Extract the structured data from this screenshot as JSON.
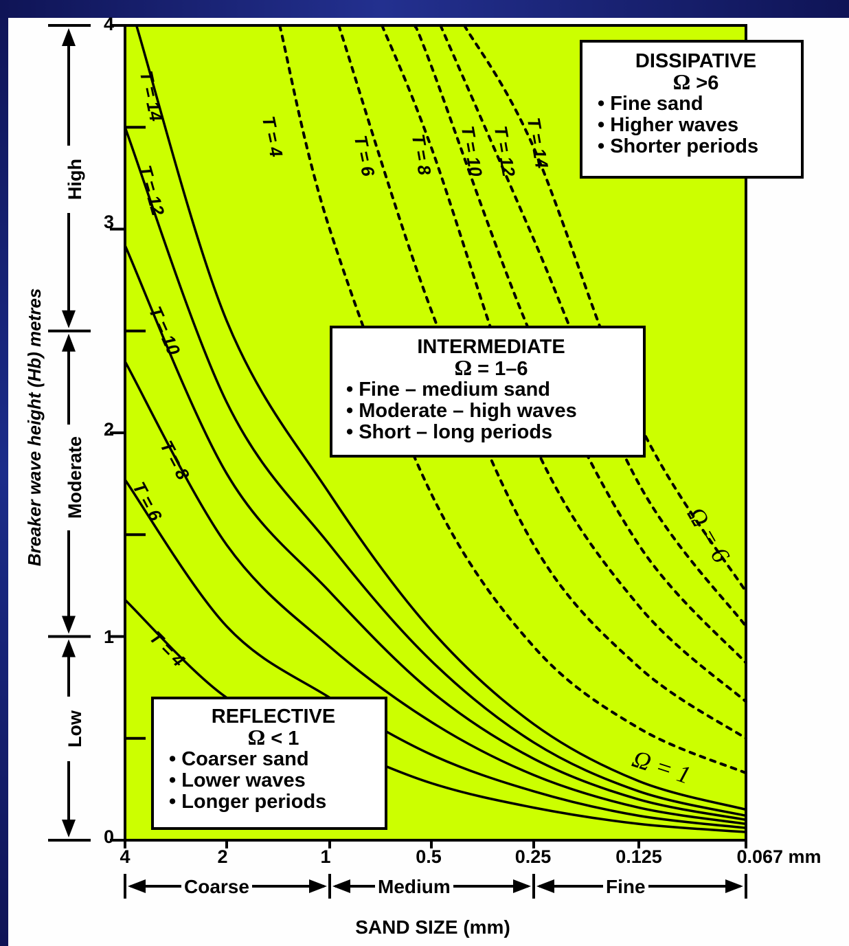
{
  "chart_data": {
    "type": "line",
    "ylabel": "Breaker wave height (Hb) metres",
    "xlabel": "SAND SIZE (mm)",
    "x_tick_labels": [
      "4",
      "2",
      "1",
      "0.5",
      "0.25",
      "0.125",
      "0.067 mm"
    ],
    "y_tick_labels": [
      "0",
      "1",
      "2",
      "3",
      "4"
    ],
    "xlim": [
      4,
      0.067
    ],
    "ylim": [
      0,
      4
    ],
    "x_scale": "log (sand size)",
    "background": "#ccff00",
    "height_bands": [
      {
        "label": "Low",
        "range": [
          0,
          1
        ]
      },
      {
        "label": "Moderate",
        "range": [
          1,
          2.5
        ]
      },
      {
        "label": "High",
        "range": [
          2.5,
          4
        ]
      }
    ],
    "size_categories": [
      {
        "label": "Coarse",
        "range": [
          4,
          1
        ]
      },
      {
        "label": "Medium",
        "range": [
          1,
          0.25
        ]
      },
      {
        "label": "Fine",
        "range": [
          0.25,
          0.067
        ]
      }
    ],
    "series": [
      {
        "name": "T = 4",
        "group": "Ω = 1",
        "style": "solid",
        "x": [
          4,
          2,
          1,
          0.5,
          0.25,
          0.125,
          0.067
        ],
        "y": [
          1.18,
          0.7,
          0.48,
          0.28,
          0.16,
          0.08,
          0.04
        ]
      },
      {
        "name": "T = 6",
        "group": "Ω = 1",
        "style": "solid",
        "x": [
          4,
          2,
          1,
          0.5,
          0.25,
          0.125,
          0.067
        ],
        "y": [
          1.77,
          1.05,
          0.7,
          0.42,
          0.24,
          0.12,
          0.06
        ]
      },
      {
        "name": "T = 8",
        "group": "Ω = 1",
        "style": "solid",
        "x": [
          4,
          2,
          1,
          0.5,
          0.25,
          0.125,
          0.067
        ],
        "y": [
          2.35,
          1.45,
          0.95,
          0.58,
          0.32,
          0.16,
          0.08
        ]
      },
      {
        "name": "T = 10",
        "group": "Ω = 1",
        "style": "solid",
        "x": [
          4,
          2,
          1,
          0.5,
          0.25,
          0.125,
          0.067
        ],
        "y": [
          2.92,
          1.8,
          1.22,
          0.73,
          0.4,
          0.2,
          0.1
        ]
      },
      {
        "name": "T = 12",
        "group": "Ω = 1",
        "style": "solid",
        "x": [
          4,
          2,
          1,
          0.5,
          0.25,
          0.125,
          0.067
        ],
        "y": [
          3.5,
          2.15,
          1.45,
          0.88,
          0.48,
          0.24,
          0.12
        ]
      },
      {
        "name": "T = 14",
        "group": "Ω = 1",
        "style": "solid",
        "x": [
          3.7,
          2,
          1,
          0.5,
          0.25,
          0.125,
          0.067
        ],
        "y": [
          4.0,
          2.55,
          1.7,
          1.03,
          0.57,
          0.29,
          0.15
        ]
      },
      {
        "name": "T = 4",
        "group": "Ω = 6",
        "style": "dashed",
        "x": [
          1.4,
          1,
          0.5,
          0.25,
          0.125,
          0.067
        ],
        "y": [
          4.0,
          3.0,
          1.7,
          0.95,
          0.55,
          0.33
        ]
      },
      {
        "name": "T = 6",
        "group": "Ω = 6",
        "style": "dashed",
        "x": [
          0.94,
          0.5,
          0.25,
          0.125,
          0.067
        ],
        "y": [
          4.0,
          2.6,
          1.45,
          0.85,
          0.5
        ]
      },
      {
        "name": "T = 8",
        "group": "Ω = 6",
        "style": "dashed",
        "x": [
          0.7,
          0.5,
          0.25,
          0.125,
          0.067
        ],
        "y": [
          4.0,
          3.4,
          1.95,
          1.15,
          0.68
        ]
      },
      {
        "name": "T = 10",
        "group": "Ω = 6",
        "style": "dashed",
        "x": [
          0.56,
          0.5,
          0.25,
          0.125,
          0.067
        ],
        "y": [
          4.0,
          3.8,
          2.45,
          1.45,
          0.87
        ]
      },
      {
        "name": "T = 12",
        "group": "Ω = 6",
        "style": "dashed",
        "x": [
          0.47,
          0.25,
          0.125,
          0.067
        ],
        "y": [
          4.0,
          2.95,
          1.75,
          1.05
        ]
      },
      {
        "name": "T = 14",
        "group": "Ω = 6",
        "style": "dashed",
        "x": [
          0.4,
          0.25,
          0.125,
          0.067
        ],
        "y": [
          4.0,
          3.4,
          2.05,
          1.22
        ]
      }
    ],
    "curve_labels": [
      "T = 4",
      "T = 6",
      "T = 8",
      "T = 10",
      "T = 12",
      "T = 14"
    ],
    "omega_curve_labels": [
      "Ω = 1",
      "Ω = 6"
    ],
    "annotations": [
      {
        "title": "DISSIPATIVE",
        "omega_symbol": "Ω",
        "omega_value": ">6",
        "bullets": [
          "• Fine sand",
          "• Higher waves",
          "• Shorter periods"
        ]
      },
      {
        "title": "INTERMEDIATE",
        "omega_symbol": "Ω",
        "omega_value": "= 1–6",
        "bullets": [
          "• Fine – medium sand",
          "• Moderate – high waves",
          "• Short – long periods"
        ]
      },
      {
        "title": "REFLECTIVE",
        "omega_symbol": "Ω",
        "omega_value": "< 1",
        "bullets": [
          "• Coarser sand",
          "• Lower waves",
          "• Longer periods"
        ]
      }
    ]
  }
}
